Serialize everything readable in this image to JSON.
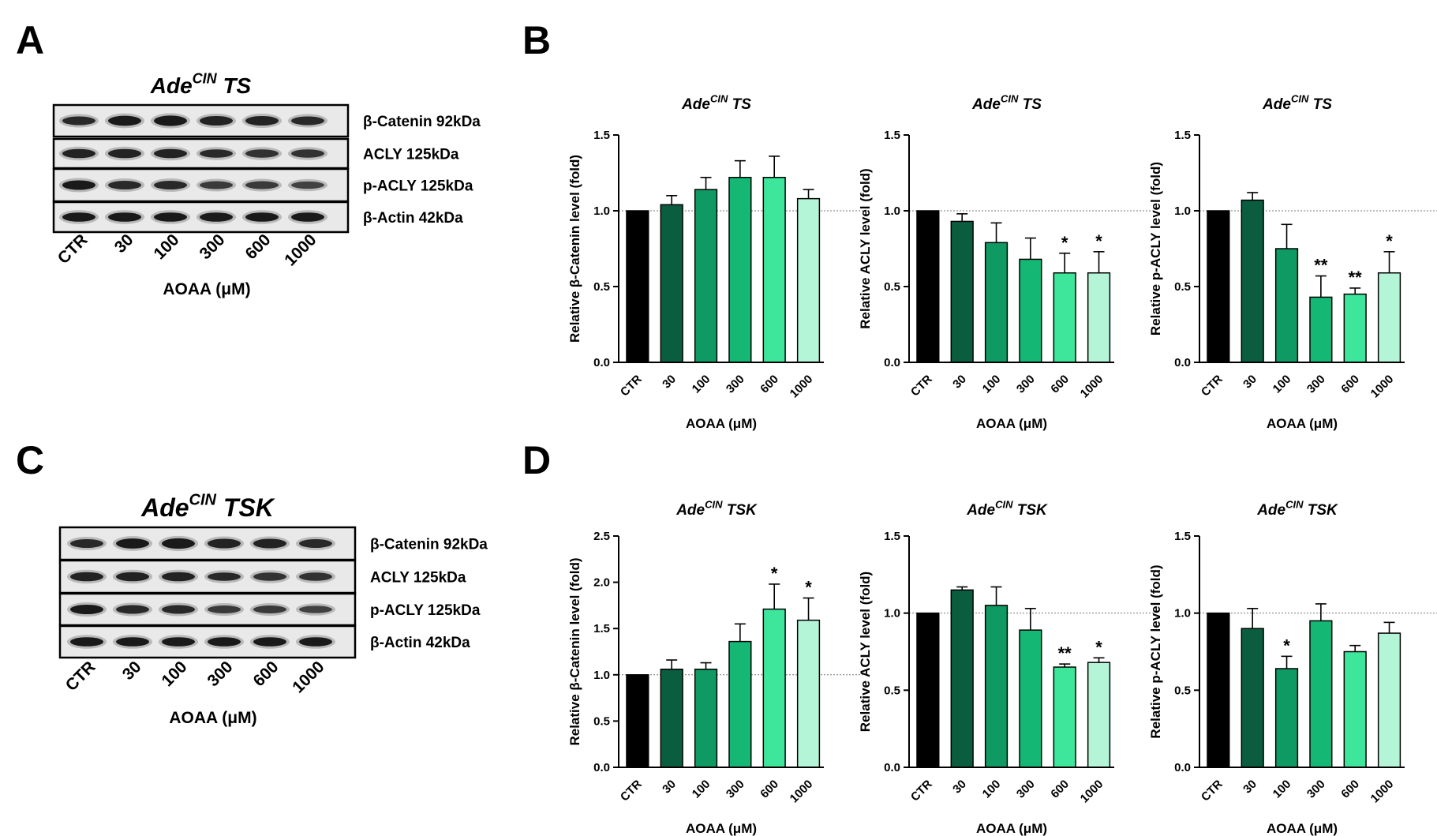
{
  "panels": {
    "A": "A",
    "B": "B",
    "C": "C",
    "D": "D"
  },
  "blots": [
    {
      "title_main": "Ade",
      "title_sup": "CIN",
      "title_rest": " TS",
      "rows": [
        "β-Catenin 92kDa",
        "ACLY 125kDa",
        "p-ACLY 125kDa",
        "β-Actin 42kDa"
      ],
      "lanes": [
        "CTR",
        "30",
        "100",
        "300",
        "600",
        "1000"
      ],
      "xlabel": "AOAA (μM)"
    },
    {
      "title_main": "Ade",
      "title_sup": "CIN",
      "title_rest": " TSK",
      "rows": [
        "β-Catenin 92kDa",
        "ACLY 125kDa",
        "p-ACLY 125kDa",
        "β-Actin 42kDa"
      ],
      "lanes": [
        "CTR",
        "30",
        "100",
        "300",
        "600",
        "1000"
      ],
      "xlabel": "AOAA (μM)"
    }
  ],
  "colors": {
    "bars": [
      "#000000",
      "#0b5d40",
      "#109a63",
      "#14b874",
      "#3ee69c",
      "#b4f5d8"
    ]
  },
  "chart_data": [
    {
      "type": "bar",
      "title_main": "Ade",
      "title_sup": "CIN",
      "title_rest": " TS",
      "categories": [
        "CTR",
        "30",
        "100",
        "300",
        "600",
        "1000"
      ],
      "values": [
        1.0,
        1.04,
        1.14,
        1.22,
        1.22,
        1.08
      ],
      "errors": [
        0,
        0.06,
        0.08,
        0.11,
        0.14,
        0.06
      ],
      "sig": [
        "",
        "",
        "",
        "",
        "",
        ""
      ],
      "xlabel": "AOAA (μM)",
      "ylabel": "Relative β-Catenin level (fold)",
      "ylim": [
        0,
        1.5
      ],
      "yticks": [
        "0.0",
        "0.5",
        "1.0",
        "1.5"
      ],
      "yticks_v": [
        0,
        0.5,
        1.0,
        1.5
      ],
      "reference_line": 1.0
    },
    {
      "type": "bar",
      "title_main": "Ade",
      "title_sup": "CIN",
      "title_rest": " TS",
      "categories": [
        "CTR",
        "30",
        "100",
        "300",
        "600",
        "1000"
      ],
      "values": [
        1.0,
        0.93,
        0.79,
        0.68,
        0.59,
        0.59
      ],
      "errors": [
        0,
        0.05,
        0.13,
        0.14,
        0.13,
        0.14
      ],
      "sig": [
        "",
        "",
        "",
        "",
        "*",
        "*"
      ],
      "xlabel": "AOAA (μM)",
      "ylabel": "Relative ACLY level (fold)",
      "ylim": [
        0,
        1.5
      ],
      "yticks": [
        "0.0",
        "0.5",
        "1.0",
        "1.5"
      ],
      "yticks_v": [
        0,
        0.5,
        1.0,
        1.5
      ],
      "reference_line": 1.0
    },
    {
      "type": "bar",
      "title_main": "Ade",
      "title_sup": "CIN",
      "title_rest": " TS",
      "categories": [
        "CTR",
        "30",
        "100",
        "300",
        "600",
        "1000"
      ],
      "values": [
        1.0,
        1.07,
        0.75,
        0.43,
        0.45,
        0.59
      ],
      "errors": [
        0,
        0.05,
        0.16,
        0.14,
        0.04,
        0.14
      ],
      "sig": [
        "",
        "",
        "",
        "**",
        "**",
        "*"
      ],
      "xlabel": "AOAA (μM)",
      "ylabel": "Relative p-ACLY level (fold)",
      "ylim": [
        0,
        1.5
      ],
      "yticks": [
        "0.0",
        "0.5",
        "1.0",
        "1.5"
      ],
      "yticks_v": [
        0,
        0.5,
        1.0,
        1.5
      ],
      "reference_line": 1.0
    },
    {
      "type": "bar",
      "title_main": "Ade",
      "title_sup": "CIN",
      "title_rest": " TSK",
      "categories": [
        "CTR",
        "30",
        "100",
        "300",
        "600",
        "1000"
      ],
      "values": [
        1.0,
        1.06,
        1.06,
        1.36,
        1.71,
        1.59
      ],
      "errors": [
        0,
        0.1,
        0.07,
        0.19,
        0.27,
        0.24
      ],
      "sig": [
        "",
        "",
        "",
        "",
        "*",
        "*"
      ],
      "xlabel": "AOAA (μM)",
      "ylabel": "Relative β-Catenin level (fold)",
      "ylim": [
        0,
        2.5
      ],
      "yticks": [
        "0.0",
        "0.5",
        "1.0",
        "1.5",
        "2.0",
        "2.5"
      ],
      "yticks_v": [
        0,
        0.5,
        1.0,
        1.5,
        2.0,
        2.5
      ],
      "reference_line": 1.0
    },
    {
      "type": "bar",
      "title_main": "Ade",
      "title_sup": "CIN",
      "title_rest": " TSK",
      "categories": [
        "CTR",
        "30",
        "100",
        "300",
        "600",
        "1000"
      ],
      "values": [
        1.0,
        1.15,
        1.05,
        0.89,
        0.65,
        0.68
      ],
      "errors": [
        0,
        0.02,
        0.12,
        0.14,
        0.02,
        0.03
      ],
      "sig": [
        "",
        "",
        "",
        "",
        "**",
        "*"
      ],
      "xlabel": "AOAA (μM)",
      "ylabel": "Relative ACLY level (fold)",
      "ylim": [
        0,
        1.5
      ],
      "yticks": [
        "0.0",
        "0.5",
        "1.0",
        "1.5"
      ],
      "yticks_v": [
        0,
        0.5,
        1.0,
        1.5
      ],
      "reference_line": 1.0
    },
    {
      "type": "bar",
      "title_main": "Ade",
      "title_sup": "CIN",
      "title_rest": " TSK",
      "categories": [
        "CTR",
        "30",
        "100",
        "300",
        "600",
        "1000"
      ],
      "values": [
        1.0,
        0.9,
        0.64,
        0.95,
        0.75,
        0.87
      ],
      "errors": [
        0,
        0.13,
        0.08,
        0.11,
        0.04,
        0.07
      ],
      "sig": [
        "",
        "",
        "*",
        "",
        "",
        ""
      ],
      "xlabel": "AOAA (μM)",
      "ylabel": "Relative p-ACLY level (fold)",
      "ylim": [
        0,
        1.5
      ],
      "yticks": [
        "0.0",
        "0.5",
        "1.0",
        "1.5"
      ],
      "yticks_v": [
        0,
        0.5,
        1.0,
        1.5
      ],
      "reference_line": 1.0
    }
  ]
}
